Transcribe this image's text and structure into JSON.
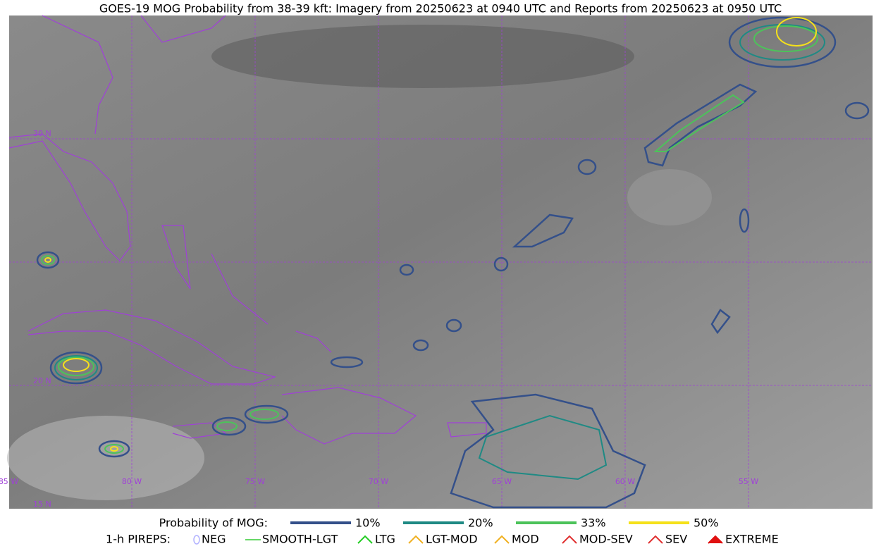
{
  "title": "GOES-19 MOG Probability from 38-39 kft: Imagery from 20250623 at 0940 UTC and Reports from 20250623 at 0950 UTC",
  "map": {
    "lat_labels": [
      "30 N",
      "20 N",
      "15 N"
    ],
    "lon_labels": [
      "85 W",
      "80 W",
      "75 W",
      "70 W",
      "65 W",
      "60 W",
      "55 W"
    ]
  },
  "legend": {
    "title": "Probability of MOG:",
    "items": [
      "10%",
      "20%",
      "33%",
      "50%"
    ]
  },
  "pireps": {
    "title": "1-h PIREPS:",
    "items": [
      "NEG",
      "SMOOTH-LGT",
      "LTG",
      "LGT-MOD",
      "MOD",
      "MOD-SEV",
      "SEV",
      "EXTREME"
    ]
  }
}
